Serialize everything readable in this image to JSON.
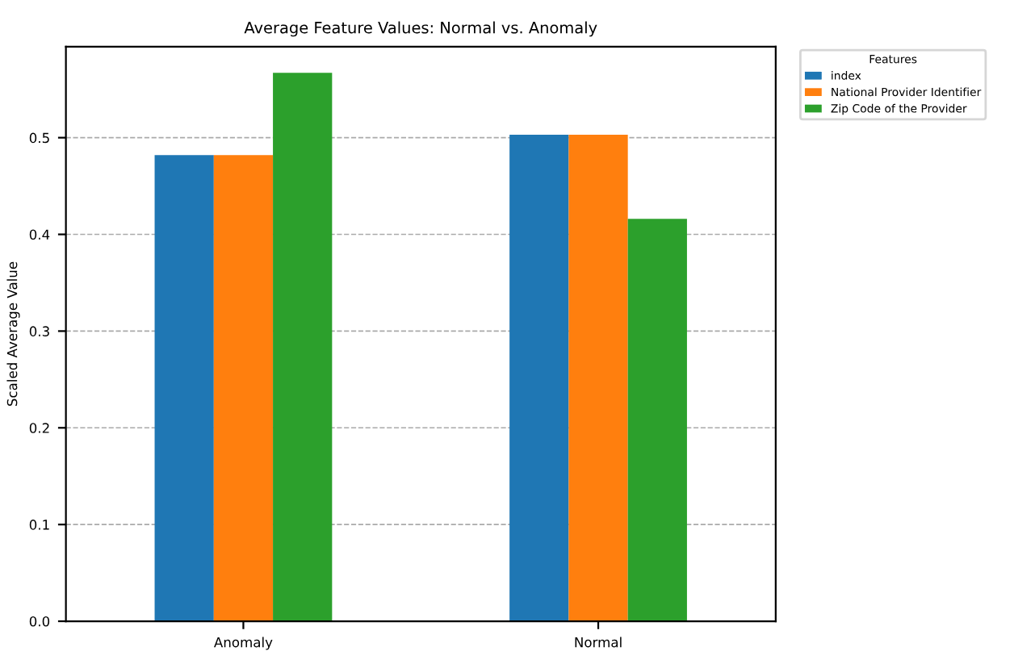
{
  "chart_data": {
    "type": "bar",
    "title": "Average Feature Values: Normal vs. Anomaly",
    "ylabel": "Scaled Average Value",
    "legend_title": "Features",
    "categories": [
      "Anomaly",
      "Normal"
    ],
    "series": [
      {
        "name": "index",
        "color": "#1f77b4",
        "values": [
          0.482,
          0.503
        ]
      },
      {
        "name": "National Provider Identifier",
        "color": "#ff7f0e",
        "values": [
          0.482,
          0.503
        ]
      },
      {
        "name": "Zip Code of the Provider",
        "color": "#2ca02c",
        "values": [
          0.567,
          0.416
        ]
      }
    ],
    "ylim": [
      0,
      0.594
    ],
    "yticks": [
      {
        "value": 0,
        "label": "0.0"
      },
      0.1,
      0.2,
      0.3,
      0.4,
      0.5
    ],
    "grid": "y",
    "legend": "top right"
  }
}
